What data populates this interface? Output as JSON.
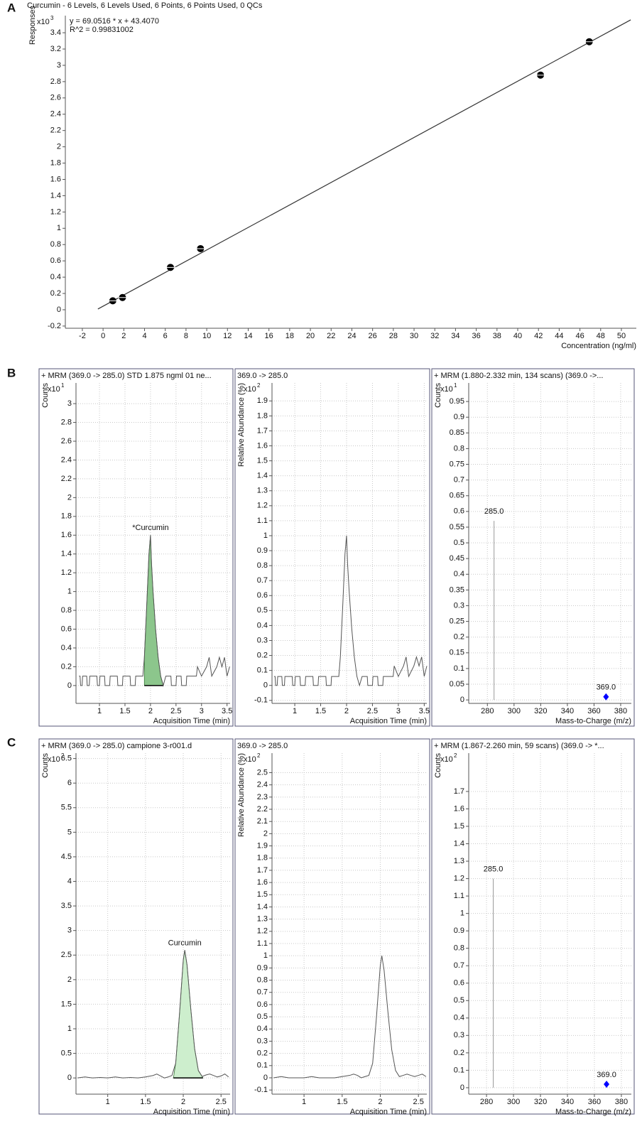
{
  "panels": [
    "A",
    "B",
    "C"
  ],
  "chart_data": [
    {
      "type": "scatter",
      "title": "Curcumin - 6 Levels, 6 Levels Used, 6 Points, 6 Points Used, 0 QCs",
      "annotations": [
        "y = 69.0516 * x + 43.4070",
        "R^2 = 0.99831002"
      ],
      "y_label": "Responses",
      "y_multiplier": {
        "base": "x10",
        "exponent": 3
      },
      "x_label": "Concentration (ng/ml)",
      "x": [
        0.9375,
        1.875,
        6.5,
        9.4,
        42.2,
        46.9
      ],
      "values": [
        0.11,
        0.15,
        0.52,
        0.75,
        2.88,
        3.29
      ],
      "fit": {
        "x": [
          -0.5,
          50.9
        ],
        "values": [
          0.009,
          3.558
        ]
      },
      "color": "#000000",
      "line_color": "#333333",
      "xlim": [
        -3.64,
        51.44
      ],
      "ylim": [
        -0.227,
        3.61
      ],
      "xticks": [
        -2,
        0,
        2,
        4,
        6,
        8,
        10,
        12,
        14,
        16,
        18,
        20,
        22,
        24,
        26,
        28,
        30,
        32,
        34,
        36,
        38,
        40,
        42,
        44,
        46,
        48,
        50
      ],
      "yticks": [
        -0.2,
        0,
        0.2,
        0.4,
        0.6,
        0.8,
        1,
        1.2,
        1.4,
        1.6,
        1.8,
        2,
        2.2,
        2.4,
        2.6,
        2.8,
        3,
        3.2,
        3.4
      ],
      "grid": false
    },
    {
      "type": "line",
      "title": "+ MRM (369.0 -> 285.0) STD 1.875 ngml 01 ne...",
      "y_label": "Counts",
      "y_multiplier": {
        "base": "x10",
        "exponent": 1
      },
      "x_label": "Acquisition Time (min)",
      "annotation": "*Curcumin",
      "x": [
        0.6,
        0.62,
        0.63,
        0.66,
        0.67,
        0.75,
        0.76,
        0.8,
        0.81,
        0.95,
        0.96,
        1.0,
        1.01,
        1.1,
        1.11,
        1.2,
        1.21,
        1.35,
        1.36,
        1.45,
        1.46,
        1.6,
        1.61,
        1.7,
        1.71,
        1.85,
        1.88,
        1.93,
        1.97,
        2.0,
        2.02,
        2.05,
        2.1,
        2.15,
        2.2,
        2.25,
        2.3,
        2.4,
        2.41,
        2.5,
        2.51,
        2.6,
        2.61,
        2.7,
        2.71,
        2.9,
        2.92,
        3.0,
        3.1,
        3.15,
        3.2,
        3.3,
        3.35,
        3.4,
        3.45,
        3.5,
        3.55
      ],
      "values": [
        0.1,
        0.1,
        0,
        0,
        0.1,
        0.1,
        0,
        0,
        0.1,
        0.1,
        0,
        0,
        0.1,
        0.1,
        0,
        0,
        0.1,
        0.1,
        0,
        0,
        0.1,
        0.1,
        0,
        0,
        0.1,
        0.1,
        0.3,
        0.9,
        1.4,
        1.6,
        1.3,
        1.0,
        0.6,
        0.3,
        0.1,
        0,
        0.1,
        0.1,
        0,
        0,
        0.1,
        0.1,
        0,
        0,
        0.1,
        0.1,
        0.2,
        0.1,
        0.2,
        0.3,
        0.1,
        0.2,
        0.3,
        0.2,
        0.3,
        0.1,
        0.2
      ],
      "fill_range": [
        1.88,
        2.25
      ],
      "fill_color": "#8cc68c",
      "color": "#555555",
      "xlim": [
        0.54,
        3.56
      ],
      "ylim": [
        -0.19,
        3.22
      ],
      "xticks": [
        1,
        1.5,
        2,
        2.5,
        3,
        3.5
      ],
      "yticks": [
        0,
        0.2,
        0.4,
        0.6,
        0.8,
        1,
        1.2,
        1.4,
        1.6,
        1.8,
        2,
        2.2,
        2.4,
        2.6,
        2.8,
        3
      ],
      "grid": true
    },
    {
      "type": "line",
      "title": "369.0 -> 285.0",
      "y_label": "Relative Abundance (%)",
      "y_multiplier": {
        "base": "x10",
        "exponent": 2
      },
      "x_label": "Acquisition Time (min)",
      "x": [
        0.6,
        0.62,
        0.63,
        0.66,
        0.67,
        0.75,
        0.76,
        0.8,
        0.81,
        0.95,
        0.96,
        1.0,
        1.01,
        1.1,
        1.11,
        1.2,
        1.21,
        1.35,
        1.36,
        1.45,
        1.46,
        1.6,
        1.61,
        1.7,
        1.71,
        1.85,
        1.88,
        1.93,
        1.97,
        2.0,
        2.02,
        2.05,
        2.1,
        2.15,
        2.2,
        2.25,
        2.3,
        2.4,
        2.41,
        2.5,
        2.51,
        2.6,
        2.61,
        2.7,
        2.71,
        2.9,
        2.92,
        3.0,
        3.1,
        3.15,
        3.2,
        3.3,
        3.35,
        3.4,
        3.45,
        3.5,
        3.55
      ],
      "values": [
        0.06,
        0.06,
        0,
        0,
        0.06,
        0.06,
        0,
        0,
        0.06,
        0.06,
        0,
        0,
        0.06,
        0.06,
        0,
        0,
        0.06,
        0.06,
        0,
        0,
        0.06,
        0.06,
        0,
        0,
        0.06,
        0.06,
        0.19,
        0.56,
        0.88,
        1.0,
        0.81,
        0.63,
        0.38,
        0.19,
        0.06,
        0,
        0.06,
        0.06,
        0,
        0,
        0.06,
        0.06,
        0,
        0,
        0.06,
        0.06,
        0.13,
        0.06,
        0.13,
        0.19,
        0.06,
        0.13,
        0.19,
        0.13,
        0.19,
        0.06,
        0.13
      ],
      "color": "#555555",
      "xlim": [
        0.56,
        3.55
      ],
      "ylim": [
        -0.12,
        2.02
      ],
      "xticks": [
        1,
        1.5,
        2,
        2.5,
        3,
        3.5
      ],
      "yticks": [
        -0.1,
        0,
        0.1,
        0.2,
        0.3,
        0.4,
        0.5,
        0.6,
        0.7,
        0.8,
        0.9,
        1,
        1.1,
        1.2,
        1.3,
        1.4,
        1.5,
        1.6,
        1.7,
        1.8,
        1.9
      ],
      "grid": true
    },
    {
      "type": "stem",
      "title": "+ MRM (1.880-2.332 min, 134 scans) (369.0 ->...",
      "y_label": "Counts",
      "y_multiplier": {
        "base": "x10",
        "exponent": 1
      },
      "x_label": "Mass-to-Charge (m/z)",
      "x": [
        285.0,
        369.0
      ],
      "values": [
        0.57,
        0.01
      ],
      "x_labels": [
        "285.0",
        "369.0"
      ],
      "colors": [
        "#999999",
        "#0000ff"
      ],
      "markers": [
        "none",
        "diamond"
      ],
      "xlim": [
        266,
        388
      ],
      "ylim": [
        -0.011,
        1.009
      ],
      "xticks": [
        280,
        300,
        320,
        340,
        360,
        380
      ],
      "yticks": [
        0,
        0.05,
        0.1,
        0.15,
        0.2,
        0.25,
        0.3,
        0.35,
        0.4,
        0.45,
        0.5,
        0.55,
        0.6,
        0.65,
        0.7,
        0.75,
        0.8,
        0.85,
        0.9,
        0.95
      ],
      "grid": true
    },
    {
      "type": "line",
      "title": "+ MRM (369.0 -> 285.0) campione 3-r001.d",
      "y_label": "Counts",
      "y_multiplier": {
        "base": "x10",
        "exponent": 2
      },
      "x_label": "Acquisition Time (min)",
      "annotation": "Curcumin",
      "x": [
        0.6,
        0.7,
        0.8,
        0.9,
        1.0,
        1.1,
        1.2,
        1.3,
        1.4,
        1.5,
        1.6,
        1.65,
        1.7,
        1.75,
        1.8,
        1.85,
        1.9,
        1.95,
        2.0,
        2.02,
        2.05,
        2.1,
        2.15,
        2.2,
        2.25,
        2.3,
        2.35,
        2.4,
        2.45,
        2.5,
        2.55,
        2.6
      ],
      "values": [
        0,
        0.02,
        0,
        0.01,
        0,
        0.02,
        0,
        0.01,
        0,
        0.02,
        0.05,
        0.08,
        0.04,
        0,
        0.02,
        0.05,
        0.3,
        1.3,
        2.4,
        2.6,
        2.3,
        1.4,
        0.6,
        0.15,
        0.03,
        0.06,
        0.08,
        0.05,
        0.02,
        0.04,
        0.08,
        0.02
      ],
      "fill_range": [
        1.87,
        2.26
      ],
      "fill_color": "#cdeecd",
      "color": "#555555",
      "xlim": [
        0.58,
        2.62
      ],
      "ylim": [
        -0.33,
        6.61
      ],
      "xticks": [
        1,
        1.5,
        2,
        2.5
      ],
      "yticks": [
        0,
        0.5,
        1,
        1.5,
        2,
        2.5,
        3,
        3.5,
        4,
        4.5,
        5,
        5.5,
        6,
        6.5
      ],
      "grid": true
    },
    {
      "type": "line",
      "title": "369.0 -> 285.0",
      "y_label": "Relative Abundance (%)",
      "y_multiplier": {
        "base": "x10",
        "exponent": 2
      },
      "x_label": "Acquisition Time (min)",
      "x": [
        0.6,
        0.7,
        0.8,
        0.9,
        1.0,
        1.1,
        1.2,
        1.3,
        1.4,
        1.5,
        1.6,
        1.65,
        1.7,
        1.75,
        1.8,
        1.85,
        1.9,
        1.95,
        2.0,
        2.02,
        2.05,
        2.1,
        2.15,
        2.2,
        2.25,
        2.3,
        2.35,
        2.4,
        2.45,
        2.5,
        2.55,
        2.6
      ],
      "values": [
        0,
        0.01,
        0,
        0,
        0,
        0.01,
        0,
        0,
        0,
        0.01,
        0.02,
        0.03,
        0.02,
        0,
        0.01,
        0.02,
        0.12,
        0.5,
        0.92,
        1.0,
        0.88,
        0.54,
        0.23,
        0.06,
        0.01,
        0.02,
        0.03,
        0.02,
        0.01,
        0.02,
        0.03,
        0.01
      ],
      "color": "#555555",
      "xlim": [
        0.58,
        2.61
      ],
      "ylim": [
        -0.134,
        2.66
      ],
      "xticks": [
        1,
        1.5,
        2,
        2.5
      ],
      "yticks": [
        -0.1,
        0,
        0.1,
        0.2,
        0.3,
        0.4,
        0.5,
        0.6,
        0.7,
        0.8,
        0.9,
        1,
        1.1,
        1.2,
        1.3,
        1.4,
        1.5,
        1.6,
        1.7,
        1.8,
        1.9,
        2,
        2.1,
        2.2,
        2.3,
        2.4,
        2.5
      ],
      "grid": true
    },
    {
      "type": "stem",
      "title": "+ MRM (1.867-2.260 min, 59 scans) (369.0 -> *...",
      "y_label": "Counts",
      "y_multiplier": {
        "base": "x10",
        "exponent": 2
      },
      "x_label": "Mass-to-Charge (m/z)",
      "x": [
        285.0,
        369.0
      ],
      "values": [
        1.2,
        0.02
      ],
      "x_labels": [
        "285.0",
        "369.0"
      ],
      "colors": [
        "#999999",
        "#0000ff"
      ],
      "markers": [
        "none",
        "diamond"
      ],
      "xlim": [
        266.8,
        387.4
      ],
      "ylim": [
        -0.037,
        1.92
      ],
      "xticks": [
        280,
        300,
        320,
        340,
        360,
        380
      ],
      "yticks": [
        0,
        0.1,
        0.2,
        0.3,
        0.4,
        0.5,
        0.6,
        0.7,
        0.8,
        0.9,
        1,
        1.1,
        1.2,
        1.3,
        1.4,
        1.5,
        1.6,
        1.7
      ],
      "grid": true
    }
  ]
}
